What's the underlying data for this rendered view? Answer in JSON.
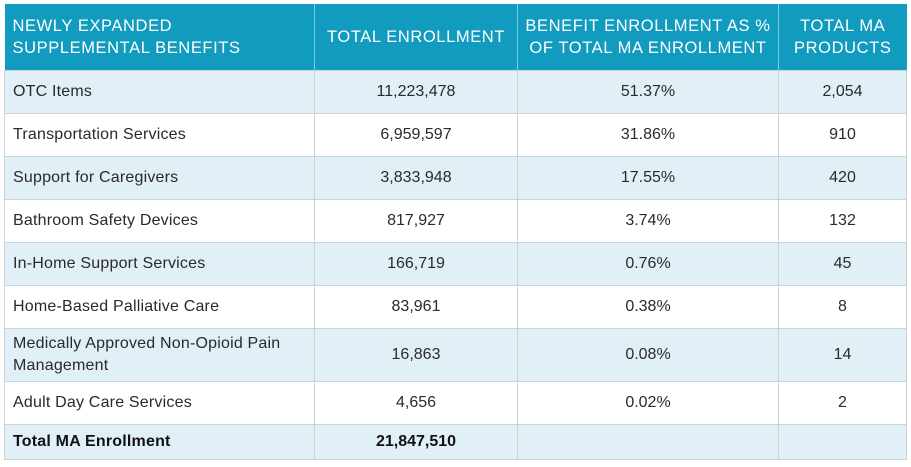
{
  "headers": {
    "benefit": "NEWLY EXPANDED SUPPLEMENTAL BENEFITS",
    "total_enrollment": "TOTAL ENROLLMENT",
    "pct_enrollment": "BENEFIT ENROLLMENT AS % OF TOTAL MA ENROLLMENT",
    "total_products": "TOTAL MA PRODUCTS"
  },
  "rows": [
    {
      "benefit": "OTC Items",
      "enrollment": "11,223,478",
      "pct": "51.37%",
      "products": "2,054"
    },
    {
      "benefit": "Transportation Services",
      "enrollment": "6,959,597",
      "pct": "31.86%",
      "products": "910"
    },
    {
      "benefit": "Support for Caregivers",
      "enrollment": "3,833,948",
      "pct": "17.55%",
      "products": "420"
    },
    {
      "benefit": "Bathroom Safety Devices",
      "enrollment": "817,927",
      "pct": "3.74%",
      "products": "132"
    },
    {
      "benefit": "In-Home Support Services",
      "enrollment": "166,719",
      "pct": "0.76%",
      "products": "45"
    },
    {
      "benefit": "Home-Based Palliative Care",
      "enrollment": "83,961",
      "pct": "0.38%",
      "products": "8"
    },
    {
      "benefit": "Medically Approved Non-Opioid Pain Management",
      "enrollment": "16,863",
      "pct": "0.08%",
      "products": "14"
    },
    {
      "benefit": "Adult Day Care Services",
      "enrollment": "4,656",
      "pct": "0.02%",
      "products": "2"
    }
  ],
  "total": {
    "label": "Total MA Enrollment",
    "enrollment": "21,847,510",
    "pct": "",
    "products": ""
  },
  "colors": {
    "header_bg": "#109bbf",
    "header_text": "#ffffff",
    "row_alt_bg": "#e1f0f6",
    "border": "#c9d3d8"
  }
}
